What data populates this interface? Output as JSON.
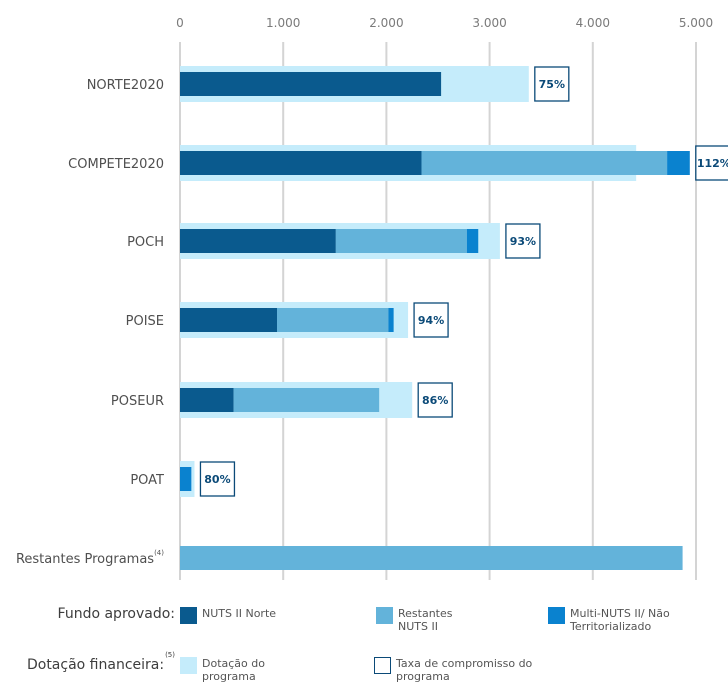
{
  "colors": {
    "nuts_norte": "#0a5a8e",
    "restantes_nuts": "#63b3da",
    "multi_nuts": "#0a82cf",
    "dotacao": "#c5ecfb",
    "taxa_border": "#0b4a78",
    "grid": "#d4d4d4"
  },
  "chart_data": {
    "type": "bar",
    "orientation": "horizontal",
    "stacked": true,
    "categories": [
      "NORTE2020",
      "COMPETE2020",
      "POCH",
      "POISE",
      "POSEUR",
      "POAT",
      "Restantes Programas"
    ],
    "category_footnotes": [
      "",
      "",
      "",
      "",
      "",
      "",
      "(4)"
    ],
    "xlim": [
      0,
      5000
    ],
    "x_ticks": [
      0,
      1000,
      2000,
      3000,
      4000,
      5000
    ],
    "x_tick_labels": [
      "0",
      "1.000",
      "2.000",
      "3.000",
      "4.000",
      "5.000"
    ],
    "x_axis_position": "top",
    "grid": true,
    "series": [
      {
        "name": "NUTS II Norte",
        "values": [
          2530,
          2340,
          1510,
          940,
          520,
          0,
          0
        ]
      },
      {
        "name": "Restantes NUTS II",
        "values": [
          0,
          2380,
          1270,
          1080,
          1410,
          0,
          4870
        ]
      },
      {
        "name": "Multi-NUTS II/ Não Territorializado",
        "values": [
          0,
          220,
          110,
          50,
          0,
          110,
          0
        ]
      }
    ],
    "dotacao_programa": [
      3380,
      4420,
      3100,
      2210,
      2250,
      140,
      null
    ],
    "taxa_compromisso": [
      "75%",
      "112%",
      "93%",
      "94%",
      "86%",
      "80%",
      ""
    ]
  },
  "legend": {
    "fundo_title": "Fundo aprovado:",
    "fundo_items": [
      {
        "label": "NUTS II Norte"
      },
      {
        "label": "Restantes NUTS II"
      },
      {
        "label": "Multi-NUTS II/ Não Territorializado"
      }
    ],
    "dotacao_title": "Dotação financeira:",
    "dotacao_footnote": "(5)",
    "dotacao_items": [
      {
        "label": "Dotação do programa"
      },
      {
        "label": "Taxa de compromisso do programa"
      }
    ]
  }
}
